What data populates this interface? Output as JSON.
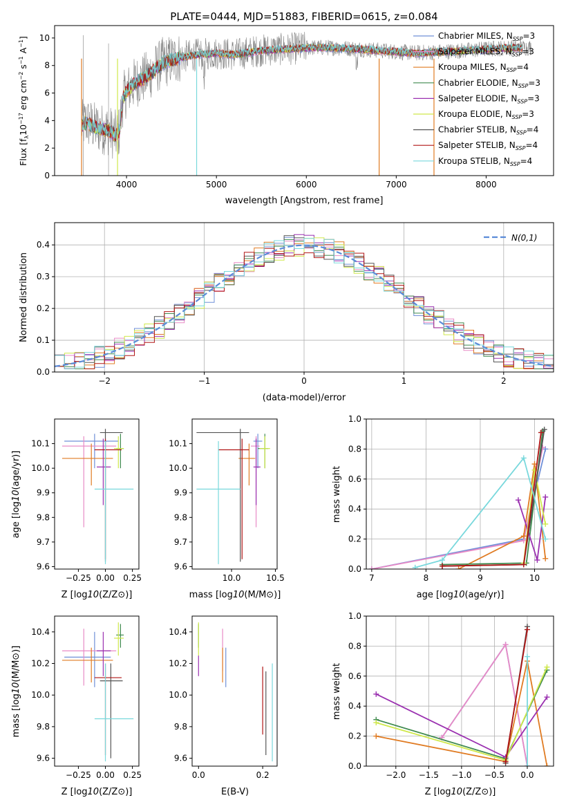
{
  "title": "PLATE=0444, MJD=51883, FIBERID=0615, z=0.084",
  "colors": {
    "Chabrier MILES": "#6f8fd8",
    "Salpeter MILES": "#e88ac6",
    "Kroupa MILES": "#e07b22",
    "Chabrier ELODIE": "#3f8a4f",
    "Salpeter ELODIE": "#9a30b0",
    "Kroupa ELODIE": "#cfe84a",
    "Chabrier STELIB": "#555555",
    "Salpeter STELIB": "#b01515",
    "Kroupa STELIB": "#78d8dc",
    "gauss": "#5b8bd8"
  },
  "chart_data": [
    {
      "type": "line",
      "xlabel": "wavelength [Angstrom, rest frame]",
      "ylabel": "Flux [f_λ10^-17 erg cm^-2 s^-1 A^-1]",
      "xlim": [
        3200,
        8750
      ],
      "ylim": [
        0,
        10.9
      ],
      "xticks": [
        4000,
        5000,
        6000,
        7000,
        8000
      ],
      "yticks": [
        0,
        2,
        4,
        6,
        8,
        10
      ],
      "legend": "upper-right",
      "legend_entries": [
        "Chabrier MILES, N_SSP=3",
        "Salpeter MILES, N_SSP=3",
        "Kroupa MILES, N_SSP=4",
        "Chabrier ELODIE, N_SSP=3",
        "Salpeter ELODIE, N_SSP=3",
        "Kroupa ELODIE, N_SSP=3",
        "Chabrier STELIB, N_SSP=4",
        "Salpeter STELIB, N_SSP=4",
        "Kroupa STELIB, N_SSP=4"
      ],
      "continuum": {
        "x": [
          3500,
          3550,
          3650,
          3800,
          3880,
          3920,
          3960,
          4000,
          4100,
          4200,
          4300,
          4400,
          4600,
          4800,
          5000,
          5200,
          5500,
          5800,
          6000,
          6300,
          6600,
          6800,
          7000,
          7200,
          7500,
          7800,
          8000,
          8300,
          8500
        ],
        "y": [
          3.6,
          3.9,
          3.5,
          3.3,
          2.9,
          3.2,
          5.6,
          6.1,
          6.8,
          7.1,
          7.6,
          8.2,
          8.6,
          8.8,
          8.9,
          8.8,
          9.1,
          9.2,
          9.3,
          9.3,
          9.2,
          9.1,
          9.0,
          8.9,
          9.0,
          9.1,
          9.2,
          9.3,
          9.3
        ]
      }
    },
    {
      "type": "bar",
      "xlabel": "(data-model)/error",
      "ylabel": "Normed distribution",
      "xlim": [
        -2.5,
        2.5
      ],
      "ylim": [
        0,
        0.47
      ],
      "xticks": [
        -2,
        -1,
        0,
        1,
        2
      ],
      "yticks": [
        0.0,
        0.1,
        0.2,
        0.3,
        0.4
      ],
      "grid": true,
      "legend": "upper-right",
      "gauss_label": "N(0,1)",
      "bin_width": 0.1
    },
    {
      "type": "scatter",
      "xlabel": "Z [log10(Z/Z⊙)]",
      "ylabel": "age [log10(age/yr)]",
      "xlim": [
        -0.47,
        0.31
      ],
      "ylim": [
        9.59,
        10.2
      ],
      "xticks": [
        -0.25,
        0.0,
        0.25
      ],
      "yticks": [
        9.6,
        9.7,
        9.8,
        9.9,
        10.0,
        10.1
      ],
      "points": [
        {
          "s": "Chabrier MILES",
          "x": -0.1,
          "y": 10.11,
          "xe": [
            -0.38,
            0.12
          ],
          "ye": [
            10.0,
            10.14
          ]
        },
        {
          "s": "Salpeter MILES",
          "x": -0.2,
          "y": 10.09,
          "xe": [
            -0.4,
            0.1
          ],
          "ye": [
            9.76,
            10.13
          ]
        },
        {
          "s": "Kroupa MILES",
          "x": -0.13,
          "y": 10.04,
          "xe": [
            -0.4,
            0.07
          ],
          "ye": [
            9.93,
            10.1
          ]
        },
        {
          "s": "Chabrier ELODIE",
          "x": 0.14,
          "y": 10.08,
          "xe": [
            0.1,
            0.17
          ],
          "ye": [
            10.0,
            10.14
          ]
        },
        {
          "s": "Salpeter ELODIE",
          "x": -0.02,
          "y": 10.005,
          "xe": [
            -0.08,
            0.05
          ],
          "ye": [
            9.85,
            10.12
          ]
        },
        {
          "s": "Kroupa ELODIE",
          "x": 0.12,
          "y": 10.08,
          "xe": [
            0.08,
            0.17
          ],
          "ye": [
            10.0,
            10.13
          ]
        },
        {
          "s": "Chabrier STELIB",
          "x": 0.0,
          "y": 10.145,
          "xe": [
            -0.05,
            0.16
          ],
          "ye": [
            9.62,
            10.16
          ]
        },
        {
          "s": "Salpeter STELIB",
          "x": 0.0,
          "y": 10.075,
          "xe": [
            -0.1,
            0.15
          ],
          "ye": [
            9.63,
            10.12
          ]
        },
        {
          "s": "Kroupa STELIB",
          "x": 0.0,
          "y": 9.915,
          "xe": [
            -0.1,
            0.26
          ],
          "ye": [
            9.61,
            10.11
          ]
        }
      ]
    },
    {
      "type": "scatter",
      "xlabel": "mass [log10(M/M⊙)]",
      "ylabel": "",
      "xlim": [
        9.55,
        10.52
      ],
      "ylim": [
        9.59,
        10.2
      ],
      "xticks": [
        10.0,
        10.5
      ],
      "yticks": [
        9.6,
        9.7,
        9.8,
        9.9,
        10.0,
        10.1
      ],
      "points": [
        {
          "s": "Chabrier MILES",
          "x": 10.3,
          "y": 10.11,
          "xe": [
            10.25,
            10.35
          ],
          "ye": [
            10.0,
            10.14
          ]
        },
        {
          "s": "Salpeter MILES",
          "x": 10.28,
          "y": 10.09,
          "xe": [
            10.22,
            10.32
          ],
          "ye": [
            9.76,
            10.13
          ]
        },
        {
          "s": "Kroupa MILES",
          "x": 10.2,
          "y": 10.04,
          "xe": [
            10.08,
            10.27
          ],
          "ye": [
            9.93,
            10.1
          ]
        },
        {
          "s": "Chabrier ELODIE",
          "x": 10.38,
          "y": 10.08,
          "xe": [
            10.3,
            10.42
          ],
          "ye": [
            10.0,
            10.14
          ]
        },
        {
          "s": "Salpeter ELODIE",
          "x": 10.28,
          "y": 10.005,
          "xe": [
            10.25,
            10.33
          ],
          "ye": [
            9.85,
            10.12
          ]
        },
        {
          "s": "Kroupa ELODIE",
          "x": 10.38,
          "y": 10.08,
          "xe": [
            10.32,
            10.44
          ],
          "ye": [
            10.0,
            10.13
          ]
        },
        {
          "s": "Chabrier STELIB",
          "x": 10.1,
          "y": 10.145,
          "xe": [
            9.6,
            10.2
          ],
          "ye": [
            9.62,
            10.16
          ]
        },
        {
          "s": "Salpeter STELIB",
          "x": 10.12,
          "y": 10.075,
          "xe": [
            9.85,
            10.2
          ],
          "ye": [
            9.63,
            10.12
          ]
        },
        {
          "s": "Kroupa STELIB",
          "x": 9.85,
          "y": 9.915,
          "xe": [
            9.6,
            10.1
          ],
          "ye": [
            9.61,
            10.11
          ]
        }
      ]
    },
    {
      "type": "line",
      "xlabel": "age [log10(age/yr)]",
      "ylabel": "mass weight",
      "xlim": [
        6.9,
        10.35
      ],
      "ylim": [
        0,
        1
      ],
      "xticks": [
        7,
        8,
        9,
        10
      ],
      "yticks": [
        0.0,
        0.2,
        0.4,
        0.6,
        0.8,
        1.0
      ],
      "grid": true,
      "series": [
        {
          "s": "Chabrier MILES",
          "x": [
            7.0,
            9.8,
            10.2
          ],
          "y": [
            0.0,
            0.2,
            0.8
          ]
        },
        {
          "s": "Salpeter MILES",
          "x": [
            7.0,
            9.8,
            10.15
          ],
          "y": [
            0.0,
            0.19,
            0.81
          ]
        },
        {
          "s": "Kroupa MILES",
          "x": [
            8.6,
            9.8,
            10.0,
            10.2
          ],
          "y": [
            0.0,
            0.22,
            0.7,
            0.07
          ]
        },
        {
          "s": "Chabrier ELODIE",
          "x": [
            8.3,
            9.85,
            10.15
          ],
          "y": [
            0.03,
            0.04,
            0.92
          ]
        },
        {
          "s": "Salpeter ELODIE",
          "x": [
            9.7,
            10.05,
            10.2
          ],
          "y": [
            0.46,
            0.06,
            0.48
          ]
        },
        {
          "s": "Kroupa ELODIE",
          "x": [
            9.8,
            10.0,
            10.2
          ],
          "y": [
            0.04,
            0.66,
            0.3
          ]
        },
        {
          "s": "Chabrier STELIB",
          "x": [
            8.3,
            9.8,
            10.18
          ],
          "y": [
            0.02,
            0.03,
            0.93
          ]
        },
        {
          "s": "Salpeter STELIB",
          "x": [
            8.3,
            9.8,
            10.12
          ],
          "y": [
            0.02,
            0.03,
            0.91
          ]
        },
        {
          "s": "Kroupa STELIB",
          "x": [
            7.8,
            8.3,
            9.8,
            10.2
          ],
          "y": [
            0.01,
            0.06,
            0.74,
            0.2
          ]
        }
      ]
    },
    {
      "type": "scatter",
      "xlabel": "Z [log10(Z/Z⊙)]",
      "ylabel": "mass [log10(M/M⊙)]",
      "xlim": [
        -0.47,
        0.31
      ],
      "ylim": [
        9.55,
        10.5
      ],
      "xticks": [
        -0.25,
        0.0,
        0.25
      ],
      "yticks": [
        9.6,
        9.8,
        10.0,
        10.2,
        10.4
      ],
      "points": [
        {
          "s": "Chabrier MILES",
          "x": -0.1,
          "y": 10.24,
          "xe": [
            -0.38,
            0.05
          ],
          "ye": [
            10.05,
            10.4
          ]
        },
        {
          "s": "Salpeter MILES",
          "x": -0.2,
          "y": 10.28,
          "xe": [
            -0.4,
            0.1
          ],
          "ye": [
            10.06,
            10.42
          ]
        },
        {
          "s": "Kroupa MILES",
          "x": -0.13,
          "y": 10.22,
          "xe": [
            -0.4,
            0.07
          ],
          "ye": [
            10.08,
            10.3
          ]
        },
        {
          "s": "Chabrier ELODIE",
          "x": 0.14,
          "y": 10.38,
          "xe": [
            0.1,
            0.17
          ],
          "ye": [
            10.3,
            10.45
          ]
        },
        {
          "s": "Salpeter ELODIE",
          "x": -0.02,
          "y": 10.28,
          "xe": [
            -0.08,
            0.05
          ],
          "ye": [
            10.12,
            10.4
          ]
        },
        {
          "s": "Kroupa ELODIE",
          "x": 0.12,
          "y": 10.36,
          "xe": [
            0.08,
            0.17
          ],
          "ye": [
            10.25,
            10.46
          ]
        },
        {
          "s": "Chabrier STELIB",
          "x": 0.05,
          "y": 10.09,
          "xe": [
            -0.05,
            0.16
          ],
          "ye": [
            9.6,
            10.2
          ]
        },
        {
          "s": "Salpeter STELIB",
          "x": 0.0,
          "y": 10.11,
          "xe": [
            -0.1,
            0.15
          ],
          "ye": [
            9.62,
            10.2
          ]
        },
        {
          "s": "Kroupa STELIB",
          "x": 0.0,
          "y": 9.85,
          "xe": [
            -0.1,
            0.26
          ],
          "ye": [
            9.58,
            10.2
          ]
        }
      ]
    },
    {
      "type": "scatter",
      "xlabel": "E(B-V)",
      "ylabel": "",
      "xlim": [
        -0.02,
        0.245
      ],
      "ylim": [
        9.55,
        10.5
      ],
      "xticks": [
        0.0,
        0.2
      ],
      "yticks": [
        9.6,
        9.8,
        10.0,
        10.2,
        10.4
      ],
      "points": [
        {
          "s": "Chabrier MILES",
          "x": 0.085,
          "ye": [
            10.05,
            10.3
          ]
        },
        {
          "s": "Salpeter MILES",
          "x": 0.075,
          "ye": [
            10.15,
            10.42
          ]
        },
        {
          "s": "Kroupa MILES",
          "x": 0.075,
          "ye": [
            10.08,
            10.3
          ]
        },
        {
          "s": "Chabrier ELODIE",
          "x": 0.0,
          "ye": [
            10.3,
            10.45
          ]
        },
        {
          "s": "Salpeter ELODIE",
          "x": 0.0,
          "ye": [
            10.12,
            10.25
          ]
        },
        {
          "s": "Kroupa ELODIE",
          "x": 0.0,
          "ye": [
            10.25,
            10.46
          ]
        },
        {
          "s": "Chabrier STELIB",
          "x": 0.21,
          "ye": [
            9.62,
            10.15
          ]
        },
        {
          "s": "Salpeter STELIB",
          "x": 0.2,
          "ye": [
            9.75,
            10.18
          ]
        },
        {
          "s": "Kroupa STELIB",
          "x": 0.23,
          "ye": [
            9.58,
            10.2
          ]
        }
      ]
    },
    {
      "type": "line",
      "xlabel": "Z [log10(Z/Z⊙)]",
      "ylabel": "mass weight",
      "xlim": [
        -2.45,
        0.4
      ],
      "ylim": [
        0,
        1
      ],
      "xticks": [
        -2.0,
        -1.5,
        -1.0,
        -0.5,
        0.0
      ],
      "yticks": [
        0.0,
        0.2,
        0.4,
        0.6,
        0.8,
        1.0
      ],
      "grid": true,
      "series": [
        {
          "s": "Chabrier MILES",
          "x": [
            -1.3,
            -0.33,
            0.0
          ],
          "y": [
            0.19,
            0.81,
            0.0
          ]
        },
        {
          "s": "Salpeter MILES",
          "x": [
            -1.3,
            -0.33,
            0.0
          ],
          "y": [
            0.19,
            0.81,
            0.0
          ]
        },
        {
          "s": "Kroupa MILES",
          "x": [
            -2.3,
            -0.33,
            0.0,
            0.3
          ],
          "y": [
            0.2,
            0.03,
            0.7,
            0.0
          ]
        },
        {
          "s": "Chabrier ELODIE",
          "x": [
            -2.3,
            -0.33,
            0.3
          ],
          "y": [
            0.31,
            0.05,
            0.64
          ]
        },
        {
          "s": "Salpeter ELODIE",
          "x": [
            -2.3,
            -0.33,
            0.3
          ],
          "y": [
            0.48,
            0.06,
            0.46
          ]
        },
        {
          "s": "Kroupa ELODIE",
          "x": [
            -2.3,
            -0.33,
            0.3
          ],
          "y": [
            0.29,
            0.04,
            0.66
          ]
        },
        {
          "s": "Chabrier STELIB",
          "x": [
            -0.33,
            0.0
          ],
          "y": [
            0.02,
            0.93
          ]
        },
        {
          "s": "Salpeter STELIB",
          "x": [
            -0.33,
            0.0
          ],
          "y": [
            0.03,
            0.91
          ]
        },
        {
          "s": "Kroupa STELIB",
          "x": [
            0.0,
            0.0
          ],
          "y": [
            0.0,
            0.73
          ]
        }
      ]
    }
  ]
}
